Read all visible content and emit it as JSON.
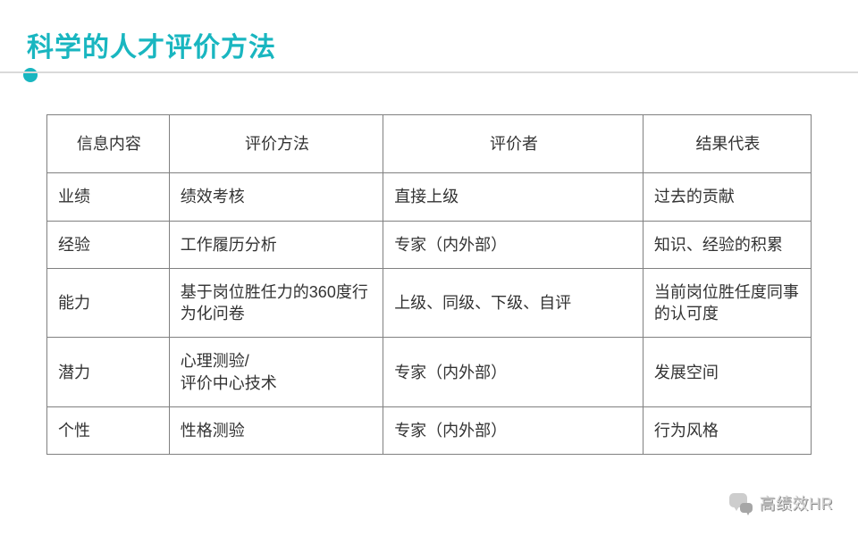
{
  "title": "科学的人才评价方法",
  "accent_color": "#19b6c0",
  "underline_color": "#d9d9d9",
  "table": {
    "col_widths_pct": [
      16,
      28,
      34,
      22
    ],
    "columns": [
      "信息内容",
      "评价方法",
      "评价者",
      "结果代表"
    ],
    "rows": [
      [
        "业绩",
        "绩效考核",
        "直接上级",
        "过去的贡献"
      ],
      [
        "经验",
        "工作履历分析",
        "专家（内外部）",
        "知识、经验的积累"
      ],
      [
        "能力",
        "基于岗位胜任力的360度行为化问卷",
        "上级、同级、下级、自评",
        "当前岗位胜任度同事的认可度"
      ],
      [
        "潜力",
        "心理测验/\n评价中心技术",
        "专家（内外部）",
        "发展空间"
      ],
      [
        "个性",
        "性格测验",
        "专家（内外部）",
        "行为风格"
      ]
    ],
    "border_color": "#808080",
    "header_fontsize": 18,
    "body_fontsize": 18
  },
  "watermark": {
    "text": "高绩效HR"
  }
}
